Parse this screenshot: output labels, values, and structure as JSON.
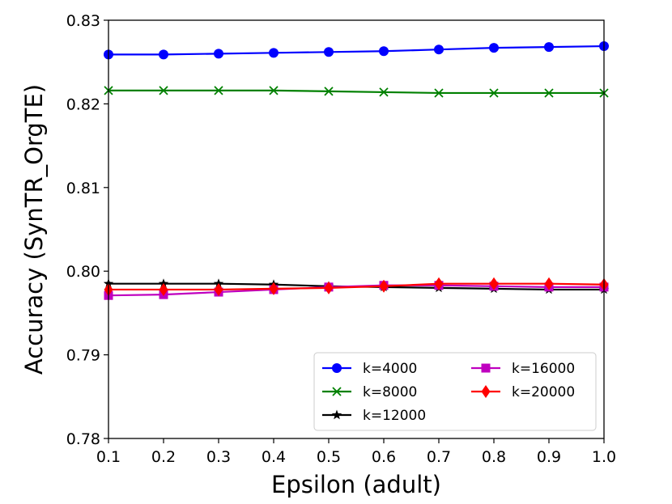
{
  "chart_data": {
    "type": "line",
    "title": "",
    "xlabel": "Epsilon (adult)",
    "ylabel": "Accuracy  (SynTR_OrgTE)",
    "xlim": [
      0.1,
      1.0
    ],
    "ylim": [
      0.78,
      0.83
    ],
    "x": [
      0.1,
      0.2,
      0.3,
      0.4,
      0.5,
      0.6,
      0.7,
      0.8,
      0.9,
      1.0
    ],
    "xticks": [
      "0.1",
      "0.2",
      "0.3",
      "0.4",
      "0.5",
      "0.6",
      "0.7",
      "0.8",
      "0.9",
      "1.0"
    ],
    "yticks": [
      "0.78",
      "0.79",
      "0.80",
      "0.81",
      "0.82",
      "0.83"
    ],
    "grid": false,
    "legend_position": "lower-right",
    "series": [
      {
        "name": "k=4000",
        "color": "#0000ff",
        "marker": "circle",
        "values": [
          0.8259,
          0.8259,
          0.826,
          0.8261,
          0.8262,
          0.8263,
          0.8265,
          0.8267,
          0.8268,
          0.8269
        ]
      },
      {
        "name": "k=8000",
        "color": "#008000",
        "marker": "x",
        "values": [
          0.8216,
          0.8216,
          0.8216,
          0.8216,
          0.8215,
          0.8214,
          0.8213,
          0.8213,
          0.8213,
          0.8213
        ]
      },
      {
        "name": "k=12000",
        "color": "#000000",
        "marker": "star",
        "values": [
          0.7985,
          0.7985,
          0.7985,
          0.7984,
          0.7982,
          0.7981,
          0.798,
          0.7979,
          0.7978,
          0.7978
        ]
      },
      {
        "name": "k=16000",
        "color": "#bf00bf",
        "marker": "square",
        "values": [
          0.7971,
          0.7972,
          0.7975,
          0.7978,
          0.7981,
          0.7983,
          0.7983,
          0.7982,
          0.7981,
          0.7981
        ]
      },
      {
        "name": "k=20000",
        "color": "#ff0000",
        "marker": "diamond",
        "values": [
          0.7978,
          0.7978,
          0.7978,
          0.7979,
          0.798,
          0.7982,
          0.7985,
          0.7985,
          0.7985,
          0.7984
        ]
      }
    ]
  }
}
